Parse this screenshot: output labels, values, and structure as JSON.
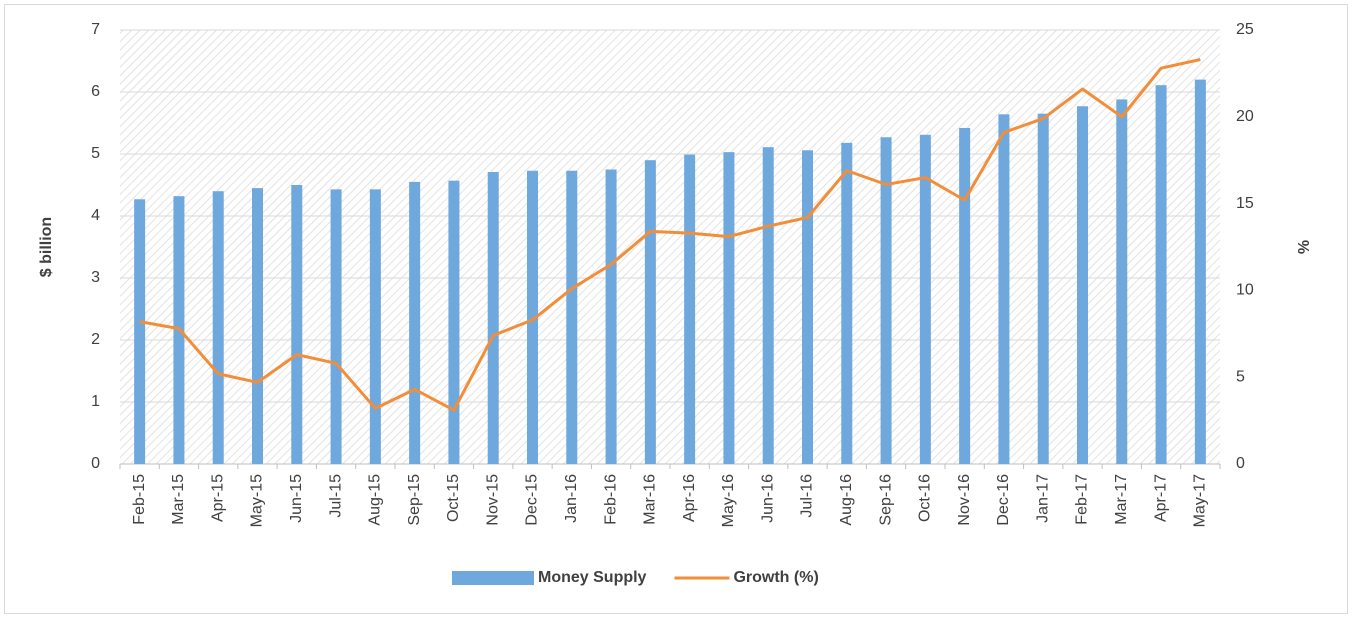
{
  "chart_data": {
    "type": "bar_line",
    "y_label": "$ billion",
    "y2_label": "%",
    "categories": [
      "Feb-15",
      "Mar-15",
      "Apr-15",
      "May-15",
      "Jun-15",
      "Jul-15",
      "Aug-15",
      "Sep-15",
      "Oct-15",
      "Nov-15",
      "Dec-15",
      "Jan-16",
      "Feb-16",
      "Mar-16",
      "Apr-16",
      "May-16",
      "Jun-16",
      "Jul-16",
      "Aug-16",
      "Sep-16",
      "Oct-16",
      "Nov-16",
      "Dec-16",
      "Jan-17",
      "Feb-17",
      "Mar-17",
      "Apr-17",
      "May-17"
    ],
    "series": [
      {
        "name": "Money Supply",
        "type": "bar",
        "color": "#6fa8dc",
        "axis": "y",
        "values": [
          4.27,
          4.32,
          4.4,
          4.45,
          4.5,
          4.43,
          4.43,
          4.55,
          4.57,
          4.71,
          4.73,
          4.73,
          4.75,
          4.9,
          4.99,
          5.03,
          5.11,
          5.06,
          5.18,
          5.27,
          5.31,
          5.42,
          5.64,
          5.65,
          5.77,
          5.88,
          6.11,
          6.2
        ]
      },
      {
        "name": "Growth (%)",
        "type": "line",
        "color": "#f28e3a",
        "axis": "y2",
        "values": [
          8.2,
          7.8,
          5.2,
          4.7,
          6.3,
          5.8,
          3.2,
          4.3,
          3.1,
          7.4,
          8.3,
          10.1,
          11.5,
          13.4,
          13.3,
          13.1,
          13.7,
          14.2,
          16.9,
          16.1,
          16.5,
          15.2,
          19.1,
          19.9,
          21.6,
          20.0,
          22.8,
          23.3
        ]
      }
    ],
    "ylim": [
      0,
      7
    ],
    "yticks": [
      0,
      1,
      2,
      3,
      4,
      5,
      6,
      7
    ],
    "y2lim": [
      0,
      25
    ],
    "y2ticks": [
      0,
      5,
      10,
      15,
      20,
      25
    ],
    "grid": true,
    "legend": "bottom"
  }
}
